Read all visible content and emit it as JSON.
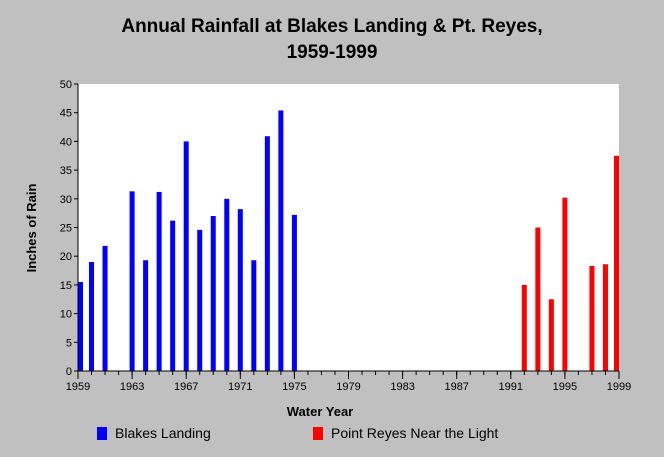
{
  "chart_data": {
    "type": "bar",
    "title_lines": [
      "Annual Rainfall at Blakes Landing & Pt. Reyes,",
      "1959-1999"
    ],
    "xlabel": "Water Year",
    "ylabel": "Inches of Rain",
    "xlim": [
      1959,
      1999
    ],
    "ylim": [
      0,
      50
    ],
    "x_ticks": [
      1959,
      1963,
      1967,
      1971,
      1975,
      1979,
      1983,
      1987,
      1991,
      1995,
      1999
    ],
    "y_ticks": [
      0,
      5,
      10,
      15,
      20,
      25,
      30,
      35,
      40,
      45,
      50
    ],
    "grid": false,
    "legend_position": "bottom",
    "series": [
      {
        "name": "Blakes Landing",
        "color": "#0000ff",
        "points": [
          {
            "x": 1959,
            "y": 15.5
          },
          {
            "x": 1960,
            "y": 19.0
          },
          {
            "x": 1961,
            "y": 21.8
          },
          {
            "x": 1963,
            "y": 31.3
          },
          {
            "x": 1964,
            "y": 19.3
          },
          {
            "x": 1965,
            "y": 31.2
          },
          {
            "x": 1966,
            "y": 26.2
          },
          {
            "x": 1967,
            "y": 40.0
          },
          {
            "x": 1968,
            "y": 24.6
          },
          {
            "x": 1969,
            "y": 27.0
          },
          {
            "x": 1970,
            "y": 30.0
          },
          {
            "x": 1971,
            "y": 28.2
          },
          {
            "x": 1972,
            "y": 19.3
          },
          {
            "x": 1973,
            "y": 40.9
          },
          {
            "x": 1974,
            "y": 45.4
          },
          {
            "x": 1975,
            "y": 27.2
          }
        ]
      },
      {
        "name": "Point Reyes Near the Light",
        "color": "#ff0000",
        "points": [
          {
            "x": 1992,
            "y": 15.0
          },
          {
            "x": 1993,
            "y": 25.0
          },
          {
            "x": 1994,
            "y": 12.5
          },
          {
            "x": 1995,
            "y": 30.2
          },
          {
            "x": 1997,
            "y": 18.3
          },
          {
            "x": 1998,
            "y": 18.6
          },
          {
            "x": 1999,
            "y": 37.5
          }
        ]
      }
    ]
  }
}
